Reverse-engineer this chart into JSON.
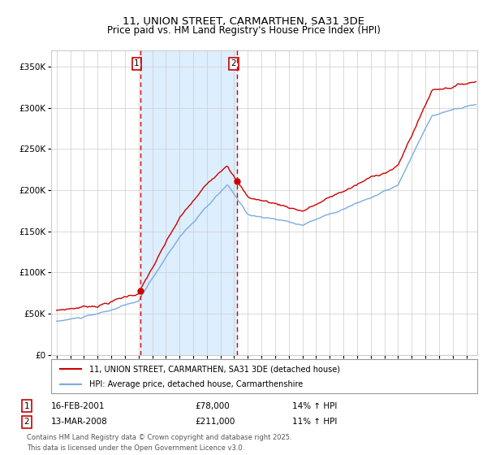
{
  "title": "11, UNION STREET, CARMARTHEN, SA31 3DE",
  "subtitle": "Price paid vs. HM Land Registry's House Price Index (HPI)",
  "ylim": [
    0,
    370000
  ],
  "yticks": [
    0,
    50000,
    100000,
    150000,
    200000,
    250000,
    300000,
    350000
  ],
  "xlim_start": 1994.6,
  "xlim_end": 2025.8,
  "purchase1_date": 2001.12,
  "purchase1_label": "1",
  "purchase1_price": 78000,
  "purchase1_text": "16-FEB-2001",
  "purchase1_hpi": "14% ↑ HPI",
  "purchase2_date": 2008.2,
  "purchase2_label": "2",
  "purchase2_price": 211000,
  "purchase2_text": "13-MAR-2008",
  "purchase2_hpi": "11% ↑ HPI",
  "legend_label_red": "11, UNION STREET, CARMARTHEN, SA31 3DE (detached house)",
  "legend_label_blue": "HPI: Average price, detached house, Carmarthenshire",
  "footnote": "Contains HM Land Registry data © Crown copyright and database right 2025.\nThis data is licensed under the Open Government Licence v3.0.",
  "line_color_red": "#cc0000",
  "line_color_blue": "#7aace0",
  "shade_color": "#ddeeff",
  "vline_color": "#cc0000",
  "background_color": "#ffffff",
  "grid_color": "#cccccc"
}
